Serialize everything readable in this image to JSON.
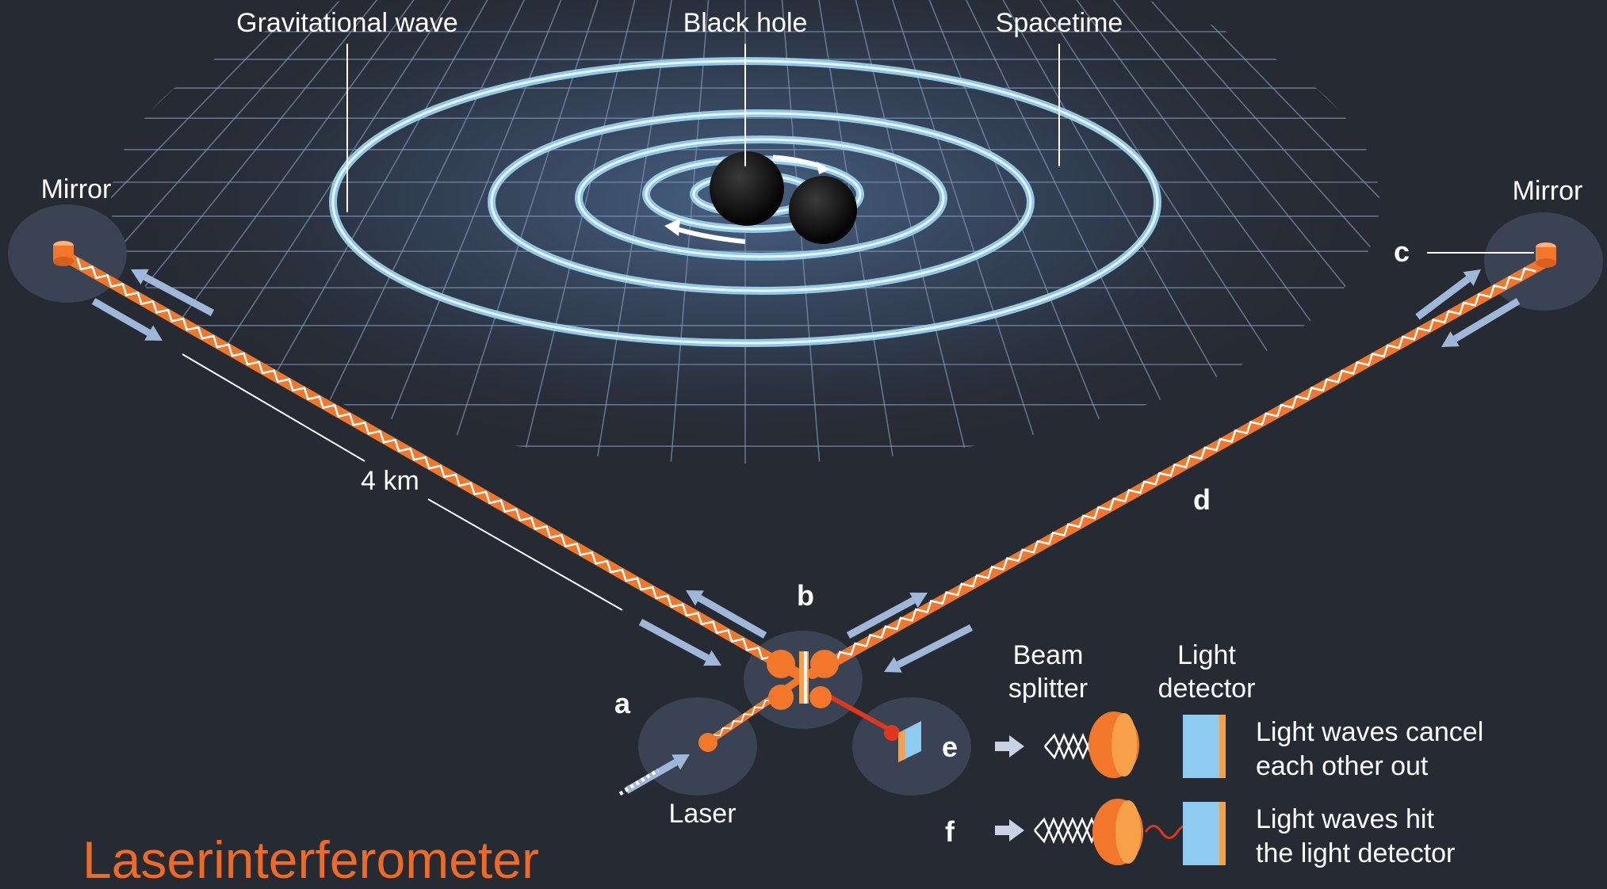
{
  "colors": {
    "background": "#262a33",
    "grid": "#7e93b2",
    "wave_ring": "#9ed7f5",
    "laser": "#f2772b",
    "arrow": "#9fb8da",
    "detector": "#8ecbf0",
    "title": "#f06a22"
  },
  "labels": {
    "gravitational_wave": "Gravitational wave",
    "black_hole": "Black hole",
    "spacetime": "Spacetime",
    "mirror_left": "Mirror",
    "mirror_right": "Mirror",
    "distance": "4 km",
    "laser": "Laser",
    "marker_a": "a",
    "marker_b": "b",
    "marker_c": "c",
    "marker_d": "d",
    "marker_e": "e",
    "marker_f": "f"
  },
  "legend": {
    "beam_splitter": [
      "Beam",
      "splitter"
    ],
    "light_detector": [
      "Light",
      "detector"
    ],
    "cancel": [
      "Light waves cancel",
      "each other out"
    ],
    "hit": [
      "Light waves hit",
      "the light detector"
    ]
  },
  "title": "Laserinterferometer"
}
